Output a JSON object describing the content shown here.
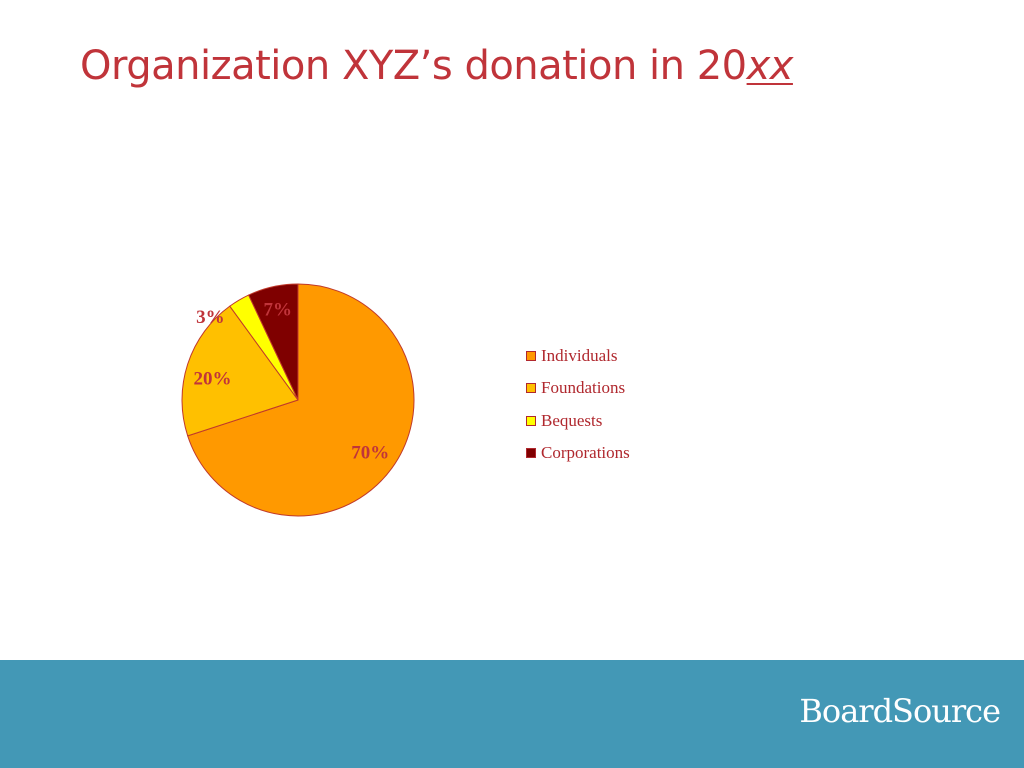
{
  "slide": {
    "title_main": "Organization XYZ’s donation in 20",
    "title_emphasis": "xx",
    "brand": "BoardSource"
  },
  "chart_data": {
    "type": "pie",
    "title": "",
    "start_angle_deg": 0,
    "direction": "clockwise",
    "legend_position": "right",
    "slices": [
      {
        "label": "Individuals",
        "value": 70,
        "value_label": "70%",
        "color": "#ff9900"
      },
      {
        "label": "Foundations",
        "value": 20,
        "value_label": "20%",
        "color": "#ffc000"
      },
      {
        "label": "Bequests",
        "value": 3,
        "value_label": "3%",
        "color": "#ffff00"
      },
      {
        "label": "Corporations",
        "value": 7,
        "value_label": "7%",
        "color": "#7f0000"
      }
    ],
    "border_color": "#c0392b",
    "label_color": "#c0343a"
  },
  "colors": {
    "title": "#c0343a",
    "footer_band": "#4398b6",
    "brand_text": "#ffffff"
  }
}
